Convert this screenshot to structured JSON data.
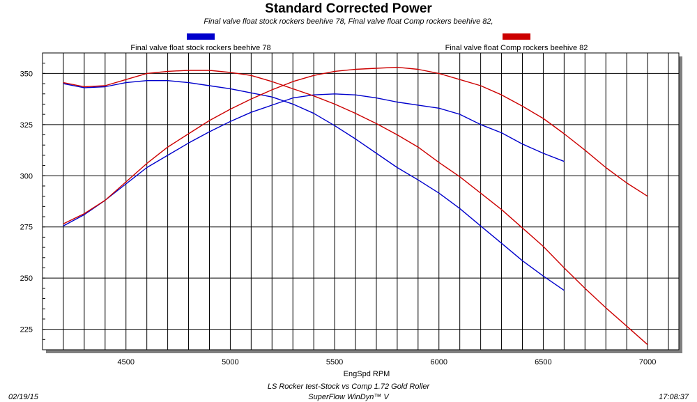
{
  "chart_data": {
    "type": "line",
    "title": "Standard Corrected Power",
    "subtitle": "Final valve float stock rockers beehive 78, Final valve float Comp rockers beehive 82,",
    "xlabel": "EngSpd RPM",
    "ylabel": "",
    "xlim": [
      4100,
      7150
    ],
    "ylim": [
      215,
      360
    ],
    "x_ticks": [
      4500,
      5000,
      5500,
      6000,
      6500,
      7000
    ],
    "x_tick_labels": [
      "4500",
      "5000",
      "5500",
      "6000",
      "6500",
      "7000"
    ],
    "y_ticks": [
      225,
      250,
      275,
      300,
      325,
      350
    ],
    "y_tick_labels": [
      "225",
      "250",
      "275",
      "300",
      "325",
      "350"
    ],
    "grid": true,
    "legend_placement": "top",
    "series": [
      {
        "name": "Final valve float stock rockers beehive 78",
        "color": "#0000cc",
        "curves": [
          {
            "x": [
              4200,
              4300,
              4400,
              4500,
              4600,
              4700,
              4800,
              4900,
              5000,
              5100,
              5200,
              5300,
              5400,
              5500,
              5600,
              5700,
              5800,
              5900,
              6000,
              6100,
              6200,
              6300,
              6400,
              6500,
              6600
            ],
            "y": [
              345,
              343,
              343.5,
              345.5,
              346.5,
              346.5,
              345.5,
              344,
              342.5,
              340.5,
              338.5,
              335,
              330.5,
              324.5,
              318,
              311,
              304,
              298,
              291.5,
              284,
              275.5,
              267,
              258.5,
              251,
              244
            ]
          },
          {
            "x": [
              4200,
              4300,
              4400,
              4500,
              4600,
              4700,
              4800,
              4900,
              5000,
              5100,
              5200,
              5300,
              5400,
              5500,
              5600,
              5700,
              5800,
              5900,
              6000,
              6100,
              6200,
              6300,
              6400,
              6500,
              6600
            ],
            "y": [
              275.5,
              281,
              288,
              296,
              304,
              310,
              316,
              321.5,
              326.5,
              331,
              334.5,
              338,
              339.5,
              340,
              339.5,
              338,
              336,
              334.5,
              333,
              330,
              325,
              321,
              315.5,
              311,
              307
            ]
          }
        ]
      },
      {
        "name": "Final valve float Comp rockers beehive 82",
        "color": "#cc0000",
        "curves": [
          {
            "x": [
              4200,
              4300,
              4400,
              4500,
              4600,
              4700,
              4800,
              4900,
              5000,
              5100,
              5200,
              5300,
              5400,
              5500,
              5600,
              5700,
              5800,
              5900,
              6000,
              6100,
              6200,
              6300,
              6400,
              6500,
              6600,
              6700,
              6800,
              6900,
              7000
            ],
            "y": [
              345.5,
              343.5,
              344,
              347,
              350,
              351,
              351.5,
              351.5,
              350.5,
              349,
              346,
              342.5,
              339,
              335,
              330.5,
              325.5,
              320,
              314,
              306.5,
              299.5,
              291.5,
              283.5,
              274.5,
              265.5,
              255,
              245,
              235.5,
              226.5,
              217.5
            ]
          },
          {
            "x": [
              4200,
              4300,
              4400,
              4500,
              4600,
              4700,
              4800,
              4900,
              5000,
              5100,
              5200,
              5300,
              5400,
              5500,
              5600,
              5700,
              5800,
              5900,
              6000,
              6100,
              6200,
              6300,
              6400,
              6500,
              6600,
              6700,
              6800,
              6900,
              7000
            ],
            "y": [
              276.5,
              281.5,
              288,
              297,
              306,
              314,
              320.5,
              327,
              332.5,
              337.5,
              342,
              346,
              349,
              351,
              352,
              352.5,
              353,
              352,
              350,
              347,
              344,
              339.5,
              334,
              328,
              320.5,
              312.5,
              304,
              296.5,
              290
            ]
          }
        ]
      }
    ]
  },
  "footer": {
    "date": "02/19/15",
    "test_name": "LS Rocker test-Stock vs Comp 1.72 Gold Roller",
    "software": "SuperFlow WinDyn™ V",
    "time": "17:08:37"
  }
}
